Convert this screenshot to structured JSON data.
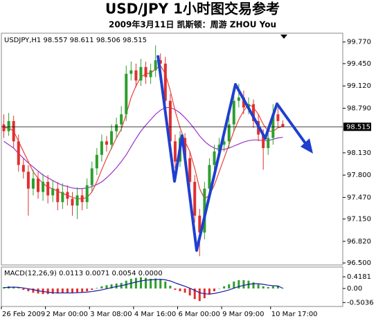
{
  "chart_data": [
    {
      "type": "candlestick",
      "title": "USD/JPY  1小时图交易参考",
      "subtitle": "2009年3月11日   凯斯顿：周游 ZHOU You",
      "label": "USDJPY,H1  98.557 98.611 98.506 98.515",
      "categories": [
        "26 Feb 2009",
        null,
        null,
        null,
        null,
        null,
        null,
        null,
        null,
        "2 Mar 00:00",
        null,
        null,
        null,
        null,
        null,
        null,
        null,
        null,
        "3 Mar 08:00",
        null,
        null,
        null,
        null,
        null,
        null,
        null,
        null,
        "4 Mar 16:00",
        null,
        null,
        null,
        null,
        null,
        null,
        null,
        null,
        "6 Mar 00:00",
        null,
        null,
        null,
        null,
        null,
        null,
        null,
        null,
        "9 Mar 09:00",
        null,
        null,
        null,
        null,
        null,
        null,
        null,
        null,
        null,
        "10 Mar 17:00",
        null,
        null
      ],
      "open": [
        98.55,
        98.45,
        98.6,
        98.3,
        97.95,
        97.85,
        97.6,
        97.75,
        97.55,
        97.7,
        97.5,
        97.6,
        97.4,
        97.55,
        97.45,
        97.35,
        97.5,
        97.4,
        97.65,
        97.9,
        98.1,
        98.3,
        98.25,
        98.45,
        98.55,
        98.7,
        99.3,
        99.35,
        99.2,
        99.4,
        99.25,
        99.35,
        99.5,
        99.45,
        98.9,
        98.3,
        98.0,
        98.35,
        98.05,
        97.7,
        97.2,
        96.95,
        97.6,
        97.95,
        98.15,
        98.25,
        98.3,
        98.55,
        98.9,
        98.95,
        98.8,
        98.85,
        98.6,
        98.4,
        98.2,
        98.35,
        98.7,
        98.557
      ],
      "high": [
        98.7,
        98.72,
        98.68,
        98.4,
        98.05,
        97.95,
        97.88,
        97.85,
        97.82,
        97.8,
        97.72,
        97.7,
        97.68,
        97.65,
        97.55,
        97.62,
        97.6,
        97.75,
        98.0,
        98.2,
        98.4,
        98.38,
        98.55,
        98.65,
        98.82,
        99.42,
        99.48,
        99.45,
        99.52,
        99.48,
        99.45,
        99.72,
        99.6,
        99.55,
        99.0,
        98.4,
        98.45,
        98.42,
        98.15,
        97.8,
        97.3,
        97.7,
        98.05,
        98.25,
        98.35,
        98.4,
        98.65,
        99.05,
        99.15,
        99.05,
        98.95,
        98.92,
        98.7,
        98.48,
        98.45,
        98.85,
        98.8,
        98.611
      ],
      "low": [
        98.35,
        98.38,
        98.2,
        97.85,
        97.75,
        97.2,
        97.5,
        97.45,
        97.42,
        97.38,
        97.4,
        97.28,
        97.3,
        97.35,
        97.2,
        97.15,
        97.28,
        97.3,
        97.55,
        97.8,
        98.0,
        98.15,
        98.18,
        98.35,
        98.45,
        98.6,
        99.2,
        99.1,
        99.12,
        99.15,
        99.15,
        99.25,
        99.35,
        98.8,
        98.2,
        97.9,
        97.92,
        97.95,
        97.6,
        97.1,
        96.6,
        96.85,
        97.5,
        97.85,
        98.05,
        98.15,
        98.2,
        98.45,
        98.8,
        98.7,
        98.7,
        98.5,
        98.3,
        97.88,
        98.1,
        98.25,
        98.5,
        98.506
      ],
      "close": [
        98.45,
        98.6,
        98.3,
        97.95,
        97.85,
        97.6,
        97.75,
        97.55,
        97.7,
        97.5,
        97.6,
        97.4,
        97.55,
        97.45,
        97.35,
        97.5,
        97.4,
        97.65,
        97.9,
        98.1,
        98.3,
        98.25,
        98.45,
        98.55,
        98.7,
        99.3,
        99.35,
        99.2,
        99.4,
        99.25,
        99.35,
        99.5,
        99.45,
        98.9,
        98.3,
        98.0,
        98.35,
        98.05,
        97.7,
        97.2,
        96.95,
        97.6,
        97.95,
        98.15,
        98.25,
        98.3,
        98.55,
        98.9,
        98.95,
        98.8,
        98.85,
        98.6,
        98.4,
        98.2,
        98.35,
        98.7,
        98.6,
        98.515
      ],
      "up_color": "#2e9e2e",
      "down_color": "#e03030",
      "series": [
        {
          "color": "#9932cc",
          "values": [
            98.3,
            98.25,
            98.2,
            98.12,
            98.05,
            97.98,
            97.92,
            97.86,
            97.8,
            97.76,
            97.72,
            97.68,
            97.65,
            97.63,
            97.61,
            97.6,
            97.6,
            97.61,
            97.63,
            97.66,
            97.7,
            97.76,
            97.83,
            97.91,
            98.0,
            98.1,
            98.22,
            98.34,
            98.45,
            98.54,
            98.62,
            98.7,
            98.76,
            98.8,
            98.8,
            98.77,
            98.72,
            98.65,
            98.57,
            98.48,
            98.38,
            98.3,
            98.24,
            98.2,
            98.18,
            98.18,
            98.2,
            98.23,
            98.26,
            98.29,
            98.31,
            98.32,
            98.32,
            98.31,
            98.31,
            98.33,
            98.35,
            98.36
          ]
        },
        {
          "color": "#e8403a",
          "values": [
            98.5,
            98.5,
            98.45,
            98.3,
            98.15,
            98.0,
            97.85,
            97.75,
            97.68,
            97.62,
            97.6,
            97.56,
            97.53,
            97.5,
            97.47,
            97.45,
            97.45,
            97.47,
            97.55,
            97.7,
            97.88,
            98.05,
            98.2,
            98.35,
            98.48,
            98.7,
            98.95,
            99.12,
            99.25,
            99.3,
            99.31,
            99.37,
            99.42,
            99.3,
            99.05,
            98.75,
            98.5,
            98.3,
            98.15,
            97.9,
            97.6,
            97.45,
            97.5,
            97.65,
            97.85,
            98.05,
            98.25,
            98.45,
            98.62,
            98.75,
            98.85,
            98.8,
            98.7,
            98.55,
            98.45,
            98.45,
            98.5,
            98.52
          ]
        }
      ],
      "current_price": 98.515,
      "ylim": [
        96.46,
        99.9
      ],
      "yticks": [
        {
          "value": 96.5,
          "label": "96.500"
        },
        {
          "value": 96.82,
          "label": "96.820"
        },
        {
          "value": 97.15,
          "label": "97.150"
        },
        {
          "value": 97.47,
          "label": "97.470"
        },
        {
          "value": 97.8,
          "label": "97.800"
        },
        {
          "value": 98.13,
          "label": "98.130"
        },
        {
          "value": 98.79,
          "label": "98.790"
        },
        {
          "value": 99.12,
          "label": "99.120"
        },
        {
          "value": 99.45,
          "label": "99.450"
        },
        {
          "value": 99.77,
          "label": "99.770"
        }
      ]
    },
    {
      "type": "macd",
      "label": "MACD(12,26,9) 0.0113 0.0071 0.0054 0.0000",
      "values": [
        0.05,
        0.08,
        0.06,
        0.02,
        -0.05,
        -0.1,
        -0.15,
        -0.18,
        -0.2,
        -0.2,
        -0.19,
        -0.18,
        -0.17,
        -0.16,
        -0.15,
        -0.14,
        -0.12,
        -0.1,
        -0.05,
        0.02,
        0.08,
        0.12,
        0.15,
        0.18,
        0.2,
        0.28,
        0.35,
        0.38,
        0.4,
        0.38,
        0.35,
        0.36,
        0.34,
        0.25,
        0.1,
        -0.05,
        -0.1,
        -0.15,
        -0.25,
        -0.38,
        -0.45,
        -0.35,
        -0.22,
        -0.1,
        0.0,
        0.08,
        0.15,
        0.25,
        0.3,
        0.3,
        0.28,
        0.22,
        0.15,
        0.08,
        0.05,
        0.08,
        0.1,
        0.0113
      ],
      "up_color": "#2e9e2e",
      "down_color": "#e03030",
      "series": [
        {
          "color": "#1a1aa0",
          "values": [
            0.03,
            0.04,
            0.05,
            0.04,
            0.02,
            -0.01,
            -0.04,
            -0.08,
            -0.11,
            -0.13,
            -0.15,
            -0.16,
            -0.16,
            -0.16,
            -0.16,
            -0.15,
            -0.14,
            -0.13,
            -0.11,
            -0.08,
            -0.05,
            -0.01,
            0.03,
            0.07,
            0.1,
            0.14,
            0.19,
            0.23,
            0.27,
            0.3,
            0.31,
            0.32,
            0.33,
            0.31,
            0.27,
            0.2,
            0.14,
            0.08,
            0.01,
            -0.07,
            -0.15,
            -0.19,
            -0.2,
            -0.18,
            -0.14,
            -0.1,
            -0.05,
            0.01,
            0.07,
            0.11,
            0.15,
            0.17,
            0.17,
            0.15,
            0.12,
            0.1,
            0.09,
            0.0071
          ]
        }
      ],
      "ylim": [
        -0.62,
        0.72
      ],
      "yticks": [
        -0.5036,
        {
          "value": 0,
          "label": "0.00"
        },
        0.4181
      ]
    }
  ]
}
